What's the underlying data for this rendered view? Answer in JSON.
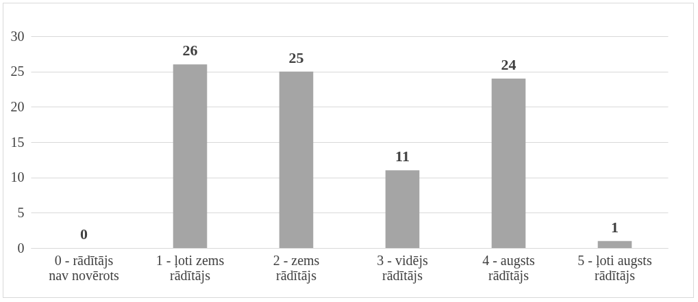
{
  "chart_data": {
    "type": "bar",
    "categories": [
      "0 - rādītājs nav novērots",
      "1 - ļoti zems rādītājs",
      "2 - zems rādītājs",
      "3 - vidējs rādītājs",
      "4 - augsts rādītājs",
      "5 - ļoti augsts rādītājs"
    ],
    "values": [
      0,
      26,
      25,
      11,
      24,
      1
    ],
    "color": "#a5a5a5",
    "ylim": [
      0,
      30
    ],
    "yticks": [
      0,
      5,
      10,
      15,
      20,
      25,
      30
    ],
    "grid": "y",
    "data_labels": true
  }
}
